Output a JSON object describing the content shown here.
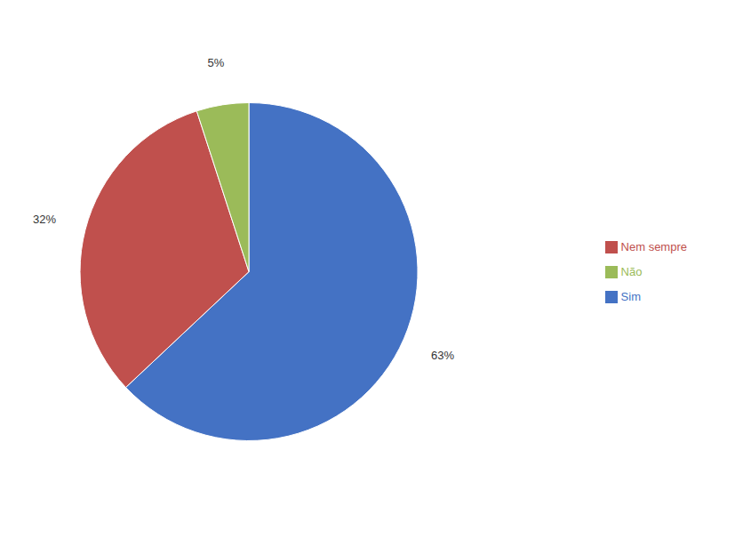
{
  "chart_data": {
    "type": "pie",
    "categories": [
      "Sim",
      "Nem sempre",
      "Não"
    ],
    "values": [
      63,
      32,
      5
    ],
    "value_labels": [
      "63%",
      "32%",
      "5%"
    ],
    "colors": [
      "#4472C4",
      "#C0504D",
      "#9BBB59"
    ],
    "data_labels": true,
    "legend": "right"
  }
}
